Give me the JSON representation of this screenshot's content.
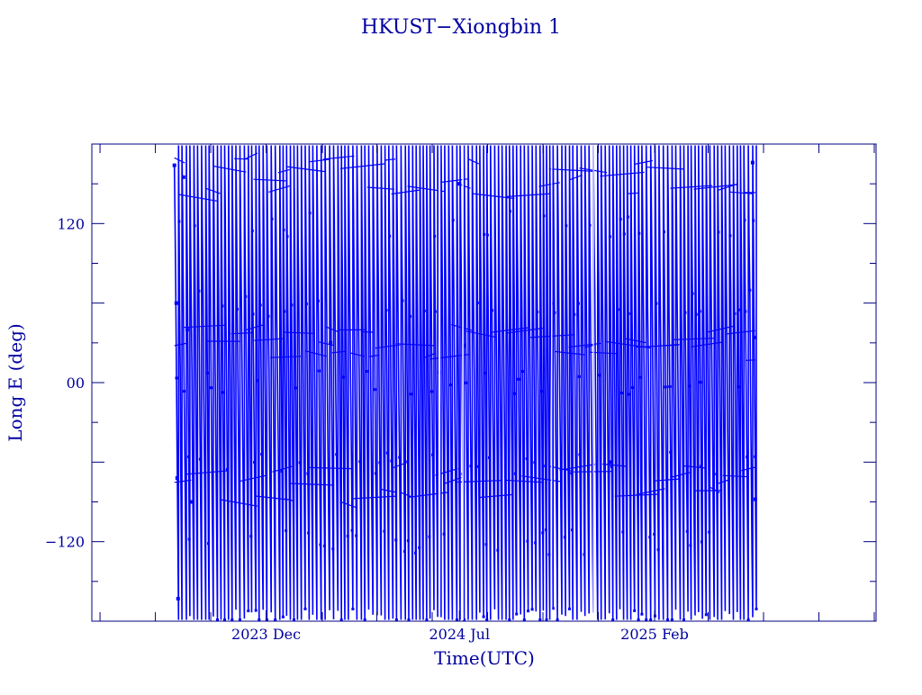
{
  "chart_data": {
    "type": "line",
    "title": "HKUST−Xiongbin 1",
    "xlabel": "Time(UTC)",
    "ylabel": "Long E (deg)",
    "x_type": "date",
    "xlim": [
      "2023-05-23",
      "2025-10-03"
    ],
    "ylim": [
      -180,
      180
    ],
    "x_ticks": [
      {
        "date": "2023-12-01",
        "label": "2023 Dec"
      },
      {
        "date": "2024-07-01",
        "label": "2024 Jul"
      },
      {
        "date": "2025-02-01",
        "label": "2025 Feb"
      }
    ],
    "y_ticks": [
      {
        "value": 120,
        "label": "120"
      },
      {
        "value": 0,
        "label": "00"
      },
      {
        "value": -120,
        "label": "−120"
      }
    ],
    "grid": false,
    "legend": "none",
    "series": [
      {
        "date_range": [
          "2023-08-22",
          "2025-05-23"
        ],
        "description_of_pattern": "dense sawtooth: longitude wraps from +180 to -180 roughly every 4-5 days",
        "samples": [
          {
            "date": "2023-08-22",
            "value": 164
          },
          {
            "date": "2023-08-24",
            "value": 60
          },
          {
            "date": "2023-08-25",
            "value": -72
          },
          {
            "date": "2023-08-26",
            "value": -163
          },
          {
            "date": "2023-09-01",
            "value": 155
          },
          {
            "date": "2023-09-05",
            "value": 40
          },
          {
            "date": "2023-09-09",
            "value": -90
          },
          {
            "date": "2024-02-10",
            "value": 30
          },
          {
            "date": "2024-07-01",
            "value": 150
          },
          {
            "date": "2024-07-06",
            "value": 28
          },
          {
            "date": "2024-12-15",
            "value": -60
          },
          {
            "date": "2025-05-20",
            "value": 166
          },
          {
            "date": "2025-05-22",
            "value": 34
          },
          {
            "date": "2025-05-23",
            "value": -88
          }
        ]
      }
    ],
    "colors": {
      "axis": "#000080",
      "text": "#0000a0",
      "series": "#0000ff"
    }
  }
}
